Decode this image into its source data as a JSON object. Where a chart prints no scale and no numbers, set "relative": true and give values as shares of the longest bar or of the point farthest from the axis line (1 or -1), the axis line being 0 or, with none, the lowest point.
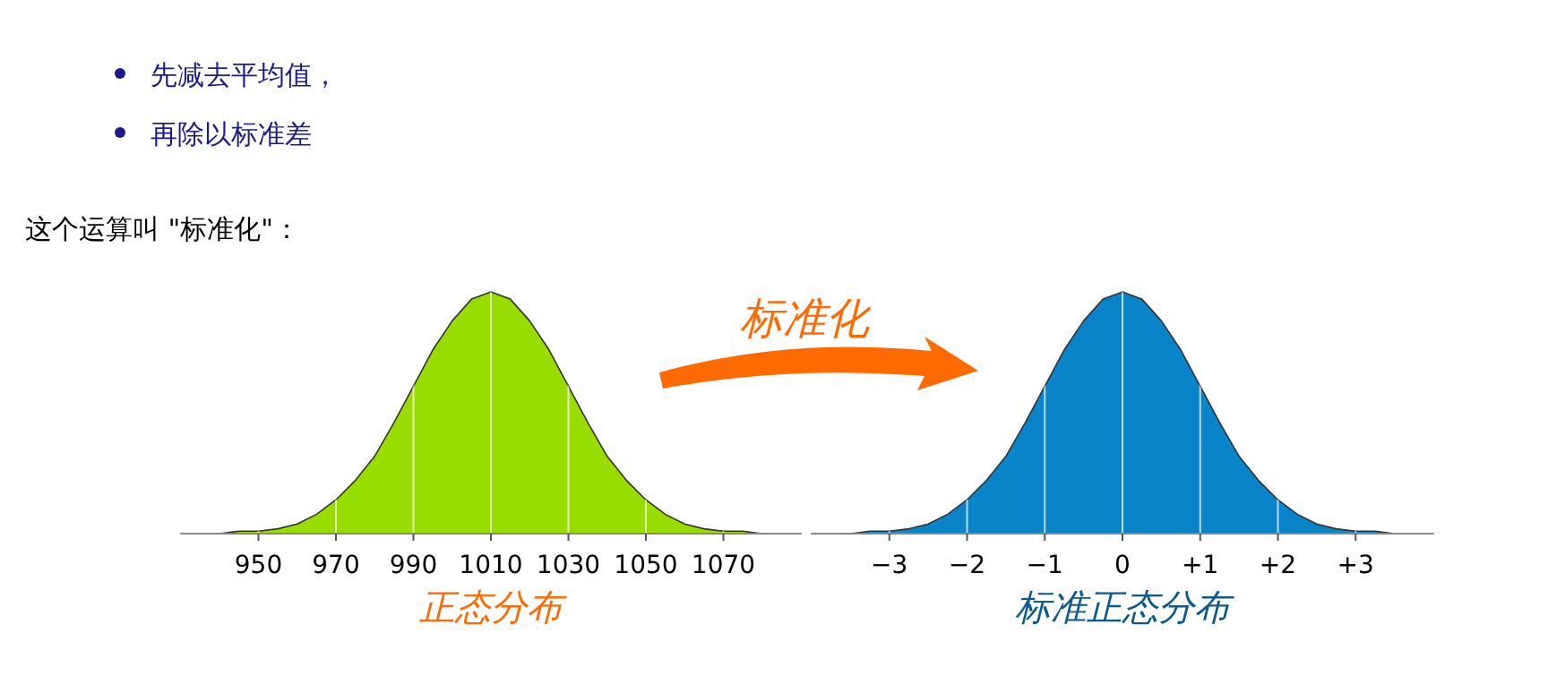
{
  "chart_data": [
    {
      "type": "other",
      "annotations": [
        "先减去平均值，",
        "再除以标准差",
        "这个运算叫 \"标准化\"：",
        "标准化"
      ]
    },
    {
      "type": "area",
      "xlabel": "正态分布",
      "color": "#99dd00",
      "grid": "x",
      "relative": true,
      "x": [
        930,
        935,
        940,
        945,
        950,
        955,
        960,
        965,
        970,
        975,
        980,
        985,
        990,
        995,
        1000,
        1005,
        1010,
        1015,
        1020,
        1025,
        1030,
        1035,
        1040,
        1045,
        1050,
        1055,
        1060,
        1065,
        1070,
        1075,
        1080,
        1085,
        1090
      ],
      "values": [
        0,
        0,
        0,
        0.01,
        0.01,
        0.02,
        0.04,
        0.08,
        0.14,
        0.22,
        0.32,
        0.46,
        0.61,
        0.76,
        0.88,
        0.97,
        1,
        0.97,
        0.88,
        0.76,
        0.61,
        0.46,
        0.32,
        0.22,
        0.14,
        0.08,
        0.04,
        0.02,
        0.01,
        0.01,
        0,
        0,
        0
      ],
      "xlim": [
        930,
        1090
      ],
      "xticks": [
        950,
        970,
        990,
        1010,
        1030,
        1050,
        1070
      ]
    },
    {
      "type": "area",
      "xlabel": "标准正态分布",
      "color": "#0a84c8",
      "grid": "x",
      "relative": true,
      "x": [
        -4,
        -3.75,
        -3.5,
        -3.25,
        -3,
        -2.75,
        -2.5,
        -2.25,
        -2,
        -1.75,
        -1.5,
        -1.25,
        -1,
        -0.75,
        -0.5,
        -0.25,
        0,
        0.25,
        0.5,
        0.75,
        1,
        1.25,
        1.5,
        1.75,
        2,
        2.25,
        2.5,
        2.75,
        3,
        3.25,
        3.5,
        3.75,
        4
      ],
      "values": [
        0,
        0,
        0,
        0.01,
        0.01,
        0.02,
        0.04,
        0.08,
        0.14,
        0.22,
        0.32,
        0.46,
        0.61,
        0.76,
        0.88,
        0.97,
        1,
        0.97,
        0.88,
        0.76,
        0.61,
        0.46,
        0.32,
        0.22,
        0.14,
        0.08,
        0.04,
        0.02,
        0.01,
        0.01,
        0,
        0,
        0
      ],
      "xlim": [
        -4,
        4
      ],
      "xticks": [
        {
          "value": -3,
          "label": "−3"
        },
        {
          "value": -2,
          "label": "−2"
        },
        {
          "value": -1,
          "label": "−1"
        },
        0,
        {
          "value": 1,
          "label": "+1"
        },
        {
          "value": 2,
          "label": "+2"
        },
        {
          "value": 3,
          "label": "+3"
        }
      ]
    }
  ]
}
